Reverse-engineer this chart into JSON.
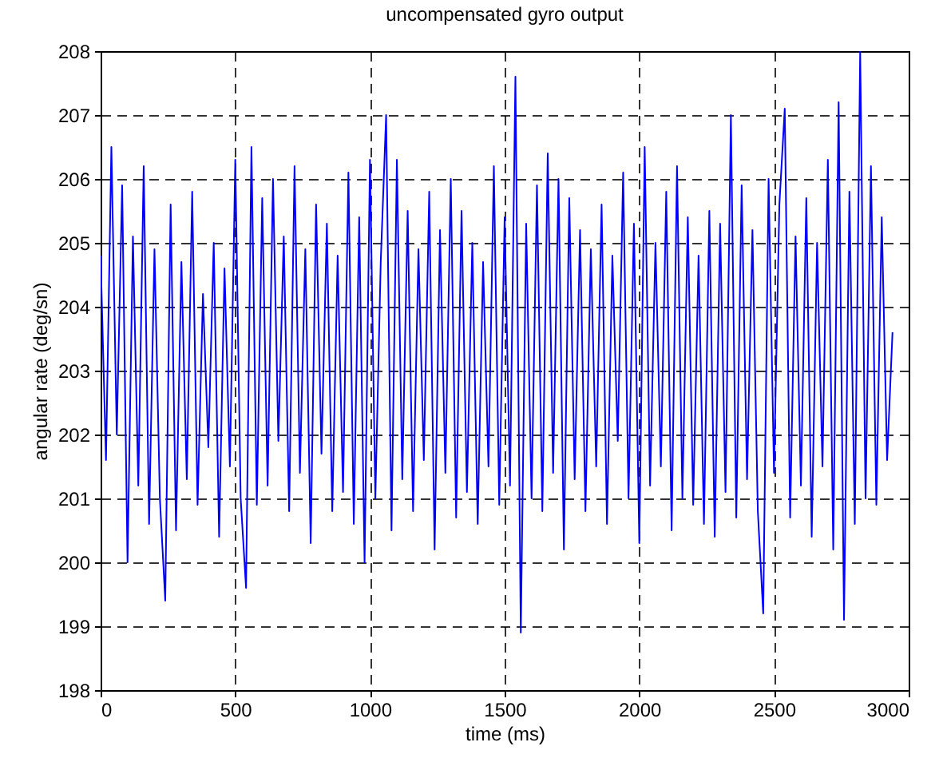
{
  "chart_data": {
    "type": "line",
    "title": "uncompensated gyro output",
    "xlabel": "time (ms)",
    "ylabel": "angular rate (deg/sn)",
    "x": [
      0,
      20,
      40,
      60,
      80,
      100,
      120,
      140,
      160,
      180,
      200,
      220,
      240,
      260,
      280,
      300,
      320,
      340,
      360,
      380,
      400,
      420,
      440,
      460,
      480,
      500,
      520,
      540,
      560,
      580,
      600,
      620,
      640,
      660,
      680,
      700,
      720,
      740,
      760,
      780,
      800,
      820,
      840,
      860,
      880,
      900,
      920,
      940,
      960,
      980,
      1000,
      1020,
      1040,
      1060,
      1080,
      1100,
      1120,
      1140,
      1160,
      1180,
      1200,
      1220,
      1240,
      1260,
      1280,
      1300,
      1320,
      1340,
      1360,
      1380,
      1400,
      1420,
      1440,
      1460,
      1480,
      1500,
      1520,
      1540,
      1560,
      1580,
      1600,
      1620,
      1640,
      1660,
      1680,
      1700,
      1720,
      1740,
      1760,
      1780,
      1800,
      1820,
      1840,
      1860,
      1880,
      1900,
      1920,
      1940,
      1960,
      1980,
      2000,
      2020,
      2040,
      2060,
      2080,
      2100,
      2120,
      2140,
      2160,
      2180,
      2200,
      2220,
      2240,
      2260,
      2280,
      2300,
      2320,
      2340,
      2360,
      2380,
      2400,
      2420,
      2440,
      2460,
      2480,
      2500,
      2520,
      2540,
      2560,
      2580,
      2600,
      2620,
      2640,
      2660,
      2680,
      2700,
      2720,
      2740,
      2760,
      2780,
      2800,
      2820,
      2840,
      2860,
      2880,
      2900,
      2920,
      2940
    ],
    "series": [
      {
        "color": "#0000ff",
        "values": [
          204.8,
          201.6,
          206.5,
          202.0,
          205.9,
          200.0,
          205.1,
          201.2,
          206.2,
          200.6,
          204.9,
          201.0,
          199.4,
          205.6,
          200.5,
          204.7,
          201.3,
          205.8,
          200.9,
          204.2,
          201.8,
          205.0,
          200.4,
          204.6,
          201.5,
          206.3,
          201.0,
          199.6,
          206.5,
          200.9,
          205.7,
          201.2,
          206.0,
          201.9,
          205.1,
          200.8,
          206.2,
          201.4,
          204.9,
          200.3,
          205.6,
          201.7,
          205.3,
          200.8,
          204.8,
          201.1,
          206.1,
          200.6,
          205.4,
          200.0,
          206.3,
          201.0,
          204.7,
          207.0,
          200.5,
          206.3,
          201.3,
          205.5,
          200.8,
          204.9,
          201.6,
          205.8,
          200.2,
          205.2,
          201.4,
          206.0,
          200.7,
          205.5,
          201.1,
          205.0,
          200.6,
          204.7,
          201.5,
          206.2,
          200.9,
          205.4,
          201.2,
          207.6,
          198.9,
          205.3,
          201.0,
          205.9,
          200.8,
          206.4,
          201.4,
          206.0,
          200.2,
          205.7,
          201.3,
          205.2,
          200.8,
          204.9,
          201.5,
          205.6,
          200.6,
          204.8,
          201.9,
          206.1,
          201.0,
          205.3,
          200.3,
          206.5,
          201.2,
          205.0,
          201.5,
          205.8,
          200.5,
          206.2,
          201.0,
          205.4,
          200.9,
          204.8,
          200.6,
          205.5,
          200.4,
          205.3,
          201.1,
          207.0,
          200.7,
          205.9,
          201.3,
          205.2,
          200.8,
          199.2,
          206.0,
          201.4,
          205.6,
          207.1,
          200.7,
          205.1,
          201.2,
          205.7,
          200.4,
          205.0,
          201.5,
          206.3,
          200.2,
          207.2,
          199.1,
          205.8,
          200.6,
          208.0,
          201.0,
          206.2,
          200.9,
          205.4,
          201.6,
          203.6
        ]
      }
    ],
    "xlim": [
      0,
      3000
    ],
    "xticks": [
      0,
      500,
      1000,
      1500,
      2000,
      2500,
      3000
    ],
    "ylim": [
      198,
      208
    ],
    "yticks": [
      198,
      199,
      200,
      201,
      202,
      203,
      204,
      205,
      206,
      207,
      208
    ],
    "grid": true,
    "marker": "none",
    "line_style": "solid"
  }
}
